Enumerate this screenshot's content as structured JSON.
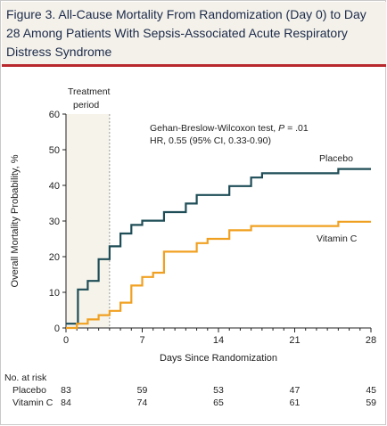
{
  "title": "Figure 3. All-Cause Mortality From Randomization (Day 0) to Day 28 Among Patients With Sepsis-Associated Acute Respiratory Distress Syndrome",
  "colors": {
    "placebo": "#1e4d57",
    "vitamin_c": "#f0a020",
    "treatment_shade": "#f5f3ea",
    "title_rule": "#b8282d",
    "title_bg": "#f3f1ea"
  },
  "chart_data": {
    "type": "line",
    "step": true,
    "xlabel": "Days Since Randomization",
    "ylabel": "Overall Mortality Probability, %",
    "xlim": [
      0,
      28
    ],
    "ylim": [
      0,
      60
    ],
    "xticks": [
      0,
      7,
      14,
      21,
      28
    ],
    "yticks": [
      0,
      10,
      20,
      30,
      40,
      50,
      60
    ],
    "treatment_period": {
      "label_line1": "Treatment",
      "label_line2": "period",
      "x_start": 0,
      "x_end": 4
    },
    "test_text_prefix": "Gehan-Breslow-Wilcoxon test, ",
    "test_text_p_symbol": "P",
    "test_text_p_value": " = .01",
    "hr_text": "HR, 0.55 (95% CI, 0.33-0.90)",
    "series": [
      {
        "name": "Placebo",
        "color_key": "placebo",
        "x": [
          0,
          1,
          1.1,
          2,
          3,
          4,
          5,
          6,
          7,
          9,
          11,
          12,
          13,
          15,
          17,
          18,
          25,
          28
        ],
        "y": [
          1.2,
          1.2,
          10.8,
          13.2,
          19.3,
          22.9,
          26.5,
          28.9,
          30.1,
          32.5,
          34.9,
          37.3,
          37.3,
          39.8,
          42.2,
          43.4,
          44.6,
          44.6
        ]
      },
      {
        "name": "Vitamin C",
        "color_key": "vitamin_c",
        "x": [
          0,
          1,
          2,
          3,
          4,
          5,
          6,
          7,
          8,
          9,
          11,
          12,
          13,
          15,
          17,
          25,
          28
        ],
        "y": [
          0,
          1.2,
          2.4,
          3.6,
          4.8,
          7.1,
          11.9,
          14.3,
          15.5,
          21.4,
          21.4,
          23.8,
          25.0,
          27.4,
          28.6,
          29.8,
          29.8
        ]
      }
    ]
  },
  "risk_table": {
    "header": "No. at risk",
    "rows": [
      {
        "label": "Placebo",
        "values": [
          "83",
          "59",
          "53",
          "47",
          "45"
        ]
      },
      {
        "label": "Vitamin C",
        "values": [
          "84",
          "74",
          "65",
          "61",
          "59"
        ]
      }
    ]
  }
}
